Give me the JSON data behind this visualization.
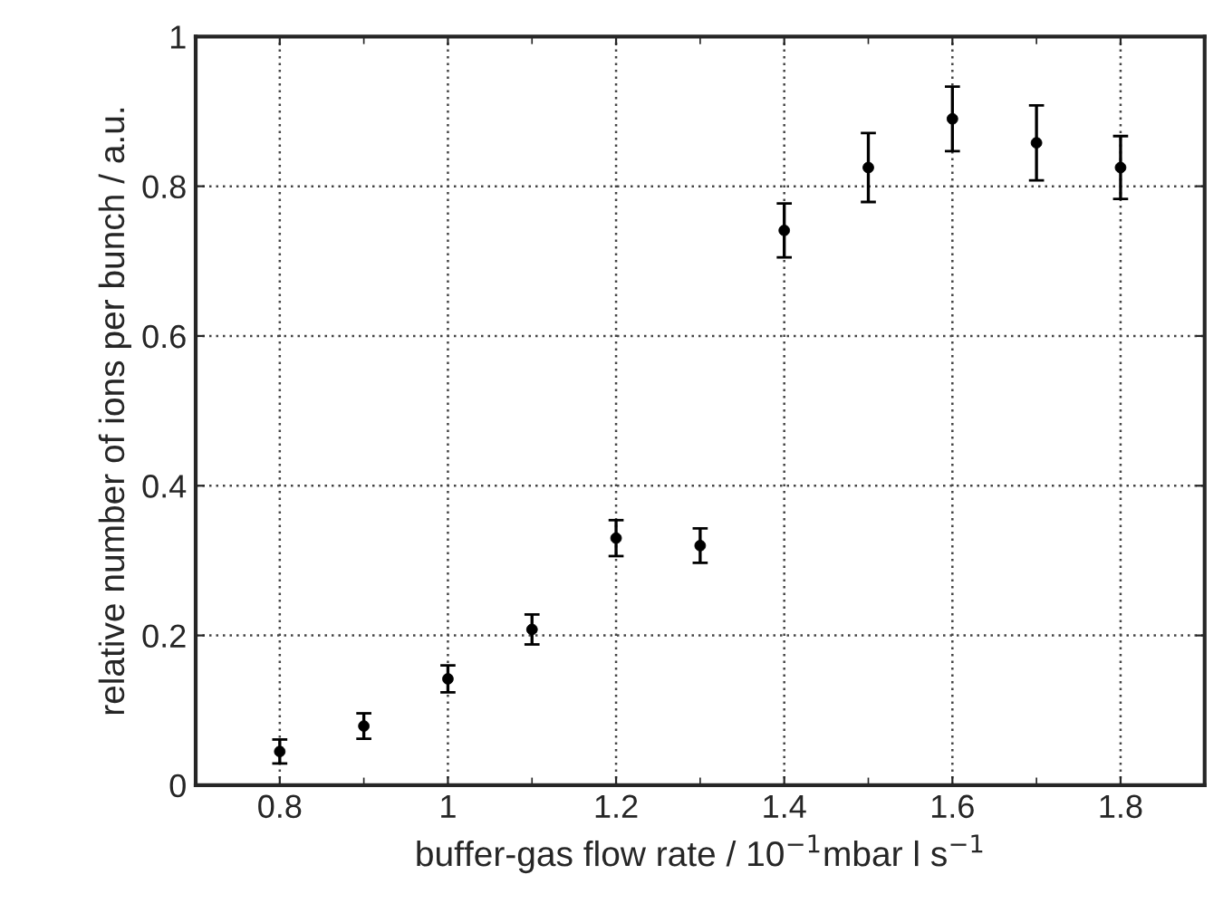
{
  "chart_data": {
    "type": "scatter",
    "xlabel": "buffer-gas flow rate / 10$^{−1}$mbar l s$^{−1}$",
    "ylabel": "relative number of ions per bunch / a.u.",
    "x": [
      0.8,
      0.9,
      1.0,
      1.1,
      1.2,
      1.3,
      1.4,
      1.5,
      1.6,
      1.7,
      1.8
    ],
    "series": [
      {
        "color": "#000000",
        "values": [
          0.045,
          0.079,
          0.142,
          0.208,
          0.33,
          0.32,
          0.741,
          0.825,
          0.89,
          0.858,
          0.825
        ],
        "errors": [
          0.016,
          0.017,
          0.018,
          0.02,
          0.024,
          0.023,
          0.036,
          0.046,
          0.043,
          0.05,
          0.042
        ]
      }
    ],
    "xlim": [
      0.7,
      1.9
    ],
    "xticks": [
      {
        "value": 0.8,
        "label": "0.8"
      },
      {
        "value": 0.9,
        "label": null
      },
      1,
      {
        "value": 1.1,
        "label": null
      },
      1.2,
      {
        "value": 1.3,
        "label": null
      },
      1.4,
      {
        "value": 1.5,
        "label": null
      },
      1.6,
      {
        "value": 1.7,
        "label": null
      },
      1.8
    ],
    "ylim": [
      0,
      1
    ],
    "yticks": [
      0,
      0.2,
      0.4,
      0.6,
      0.8,
      1
    ],
    "grid": true,
    "marker": "circle",
    "legend": false
  }
}
